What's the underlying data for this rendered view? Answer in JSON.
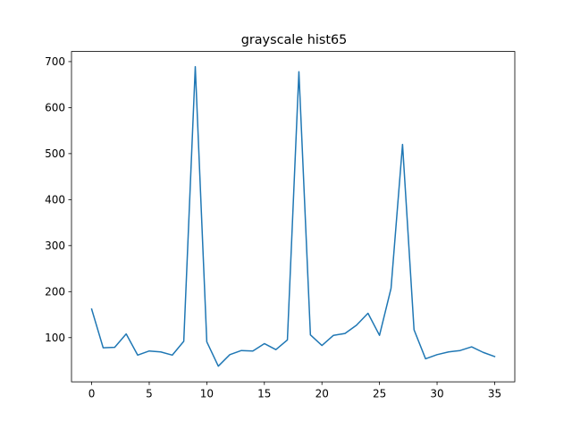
{
  "chart_data": {
    "type": "line",
    "title": "grayscale hist65",
    "xlabel": "",
    "ylabel": "",
    "xlim": [
      -1.75,
      36.75
    ],
    "ylim": [
      4,
      722
    ],
    "grid": false,
    "xticks": [
      0,
      5,
      10,
      15,
      20,
      25,
      30,
      35
    ],
    "yticks": [
      100,
      200,
      300,
      400,
      500,
      600,
      700
    ],
    "series": [
      {
        "color": "#1f77b4",
        "x": [
          0,
          1,
          2,
          3,
          4,
          5,
          6,
          7,
          8,
          9,
          10,
          11,
          12,
          13,
          14,
          15,
          16,
          17,
          18,
          19,
          20,
          21,
          22,
          23,
          24,
          25,
          26,
          27,
          28,
          29,
          30,
          31,
          32,
          33,
          34,
          35
        ],
        "y": [
          162,
          78,
          79,
          108,
          62,
          71,
          69,
          62,
          92,
          689,
          91,
          38,
          63,
          72,
          71,
          87,
          74,
          95,
          678,
          106,
          83,
          105,
          109,
          127,
          153,
          105,
          207,
          520,
          117,
          54,
          63,
          69,
          72,
          80,
          68,
          59
        ]
      }
    ]
  }
}
